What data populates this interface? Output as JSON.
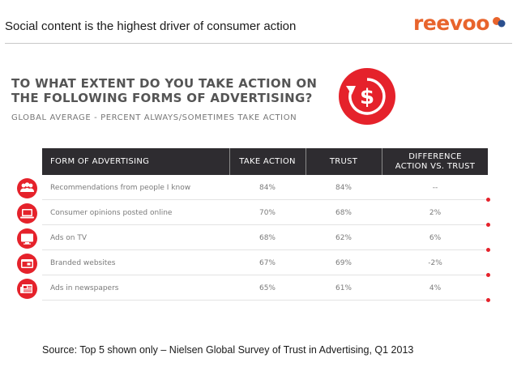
{
  "slide": {
    "title": "Social content is the highest driver of consumer action",
    "brand": "reevoo",
    "source": "Source: Top 5 shown only – Nielsen Global Survey of Trust in Advertising, Q1 2013"
  },
  "colors": {
    "accent": "#e5222b",
    "brand": "#e8642c",
    "header_bg": "#2e2c30"
  },
  "chart_data": {
    "type": "table",
    "title": "TO WHAT EXTENT DO YOU TAKE ACTION ON THE FOLLOWING FORMS OF ADVERTISING?",
    "title_lines": [
      "TO WHAT EXTENT DO YOU TAKE ACTION ON",
      "THE FOLLOWING FORMS OF ADVERTISING?"
    ],
    "subtitle": "GLOBAL AVERAGE - PERCENT ALWAYS/SOMETIMES TAKE ACTION",
    "badge_symbol": "$",
    "columns": [
      "FORM OF ADVERTISING",
      "TAKE ACTION",
      "TRUST",
      "DIFFERENCE ACTION VS. TRUST"
    ],
    "column_header_lines": {
      "form": "FORM OF ADVERTISING",
      "take": "TAKE ACTION",
      "trust": "TRUST",
      "diff": [
        "DIFFERENCE",
        "ACTION VS. TRUST"
      ]
    },
    "rows": [
      {
        "icon": "people-icon",
        "form": "Recommendations from people I know",
        "take_action": "84%",
        "trust": "84%",
        "difference": "--"
      },
      {
        "icon": "laptop-icon",
        "form": "Consumer opinions posted online",
        "take_action": "70%",
        "trust": "68%",
        "difference": "2%"
      },
      {
        "icon": "tv-icon",
        "form": "Ads on TV",
        "take_action": "68%",
        "trust": "62%",
        "difference": "6%"
      },
      {
        "icon": "browser-icon",
        "form": "Branded websites",
        "take_action": "67%",
        "trust": "69%",
        "difference": "-2%"
      },
      {
        "icon": "newspaper-icon",
        "form": "Ads in newspapers",
        "take_action": "65%",
        "trust": "61%",
        "difference": "4%"
      }
    ]
  }
}
